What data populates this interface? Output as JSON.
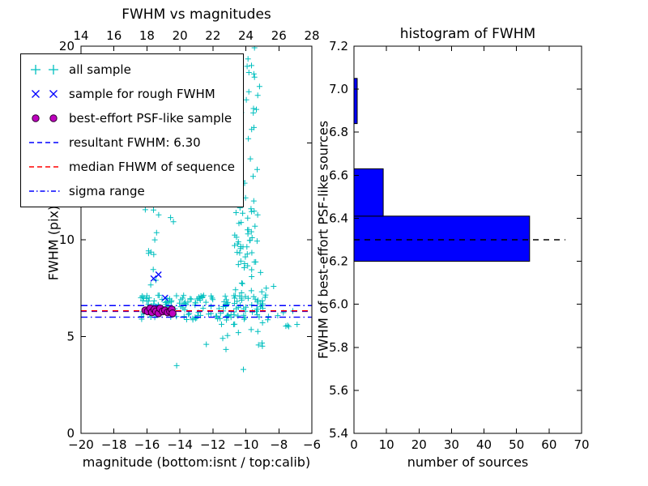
{
  "figure": {
    "background": "#ffffff"
  },
  "chart_data": [
    {
      "type": "scatter",
      "title": "FWHM vs magnitudes",
      "xlabel": "magnitude (bottom:isnt / top:calib)",
      "ylabel": "FWHM (pix)",
      "xlim": [
        -20,
        -6
      ],
      "top_xlim": [
        14,
        28
      ],
      "ylim": [
        0,
        20
      ],
      "xticks_bottom": [
        -20,
        -18,
        -16,
        -14,
        -12,
        -10,
        -8,
        -6
      ],
      "xticks_top": [
        14,
        16,
        18,
        20,
        22,
        24,
        26,
        28
      ],
      "yticks": [
        0,
        5,
        10,
        15,
        20
      ],
      "grid": false,
      "legend_position": "upper left",
      "legend": [
        {
          "label": "all sample",
          "marker": "plus",
          "color": "#00bfbf"
        },
        {
          "label": "sample for rough FWHM",
          "marker": "x",
          "color": "#0000ff"
        },
        {
          "label": "best-effort PSF-like sample",
          "marker": "circle",
          "color": "#bf00bf",
          "edge_color": "#2e002e"
        },
        {
          "label": "resultant FWHM: 6.30",
          "marker": "dashed-line",
          "color": "#0000ff"
        },
        {
          "label": "median FHWM of sequence",
          "marker": "dashed-line",
          "color": "#ff0000"
        },
        {
          "label": "sigma range",
          "marker": "dashdot-line",
          "color": "#0000ff"
        }
      ],
      "series": [
        {
          "name": "all sample",
          "marker": "plus",
          "color": "#00bfbf",
          "clusters": [
            {
              "n": 150,
              "mag": [
                -16.4,
                -8.6
              ],
              "fwhm": [
                5.85,
                7.15
              ]
            },
            {
              "n": 60,
              "mag": [
                -10.7,
                -9.2
              ],
              "fwhm": [
                6.8,
                13.5
              ]
            },
            {
              "n": 20,
              "mag": [
                -10.3,
                -9.1
              ],
              "fwhm": [
                13.5,
                20.0
              ]
            },
            {
              "n": 12,
              "mag": [
                -15.95,
                -15.35
              ],
              "fwhm": [
                7.4,
                12.6
              ]
            },
            {
              "n": 8,
              "mag": [
                -16.3,
                -12.9
              ],
              "fwhm": [
                10.8,
                13.2
              ]
            },
            {
              "n": 12,
              "mag": [
                -11.6,
                -8.2
              ],
              "fwhm": [
                4.3,
                5.8
              ]
            },
            {
              "n": 7,
              "mag": [
                -8.5,
                -6.8
              ],
              "fwhm": [
                5.5,
                6.5
              ]
            },
            {
              "n": 6,
              "mag": [
                -9.2,
                -8.3
              ],
              "fwhm": [
                6.9,
                8.6
              ]
            }
          ],
          "extra_points": [
            [
              -14.2,
              3.5
            ],
            [
              -10.15,
              3.3
            ],
            [
              -12.4,
              4.6
            ],
            [
              -9.0,
              4.5
            ]
          ]
        },
        {
          "name": "sample for rough FWHM",
          "marker": "x",
          "color": "#0000ff",
          "points": [
            [
              -15.6,
              8.0
            ],
            [
              -15.3,
              8.2
            ],
            [
              -14.9,
              7.0
            ]
          ]
        },
        {
          "name": "best-effort PSF-like sample",
          "marker": "circle",
          "color": "#bf00bf",
          "edge_color": "#2e002e",
          "points": [
            [
              -16.1,
              6.35
            ],
            [
              -15.95,
              6.3
            ],
            [
              -15.8,
              6.45
            ],
            [
              -15.7,
              6.25
            ],
            [
              -15.55,
              6.4
            ],
            [
              -15.45,
              6.3
            ],
            [
              -15.3,
              6.2
            ],
            [
              -15.2,
              6.45
            ],
            [
              -15.05,
              6.3
            ],
            [
              -14.9,
              6.35
            ],
            [
              -14.75,
              6.25
            ],
            [
              -14.6,
              6.3
            ],
            [
              -14.5,
              6.4
            ],
            [
              -14.45,
              6.2
            ]
          ]
        }
      ],
      "hlines": [
        {
          "name": "resultant FWHM",
          "y": 6.3,
          "style": "dashed",
          "color": "#0000ff"
        },
        {
          "name": "median FHWM of sequence",
          "y": 6.33,
          "style": "dashed",
          "color": "#ff0000"
        },
        {
          "name": "sigma range low",
          "y": 6.0,
          "style": "dashdot",
          "color": "#0000ff"
        },
        {
          "name": "sigma range high",
          "y": 6.6,
          "style": "dashdot",
          "color": "#0000ff"
        }
      ]
    },
    {
      "type": "bar",
      "orientation": "horizontal",
      "title": "histogram of FWHM",
      "xlabel": "number of sources",
      "ylabel": "FWHM of best-effort PSF-like sources",
      "xlim": [
        0,
        70
      ],
      "ylim": [
        5.4,
        7.2
      ],
      "xticks": [
        0,
        10,
        20,
        30,
        40,
        50,
        60,
        70
      ],
      "yticks": [
        5.4,
        5.6,
        5.8,
        6.0,
        6.2,
        6.4,
        6.6,
        6.8,
        7.0,
        7.2
      ],
      "ytick_labels": [
        "5.4",
        "5.6",
        "5.8",
        "6.0",
        "6.2",
        "6.4",
        "6.6",
        "6.8",
        "7.0",
        "7.2"
      ],
      "bin_edges": [
        6.2,
        6.41,
        6.63,
        6.84,
        7.05
      ],
      "counts": [
        54,
        9,
        0,
        1
      ],
      "bar_color": "#0000ff",
      "bar_edge_color": "#000000",
      "median_line": {
        "y": 6.3,
        "x_start": 0,
        "x_end": 65,
        "style": "dashed",
        "color": "#000000"
      }
    }
  ]
}
